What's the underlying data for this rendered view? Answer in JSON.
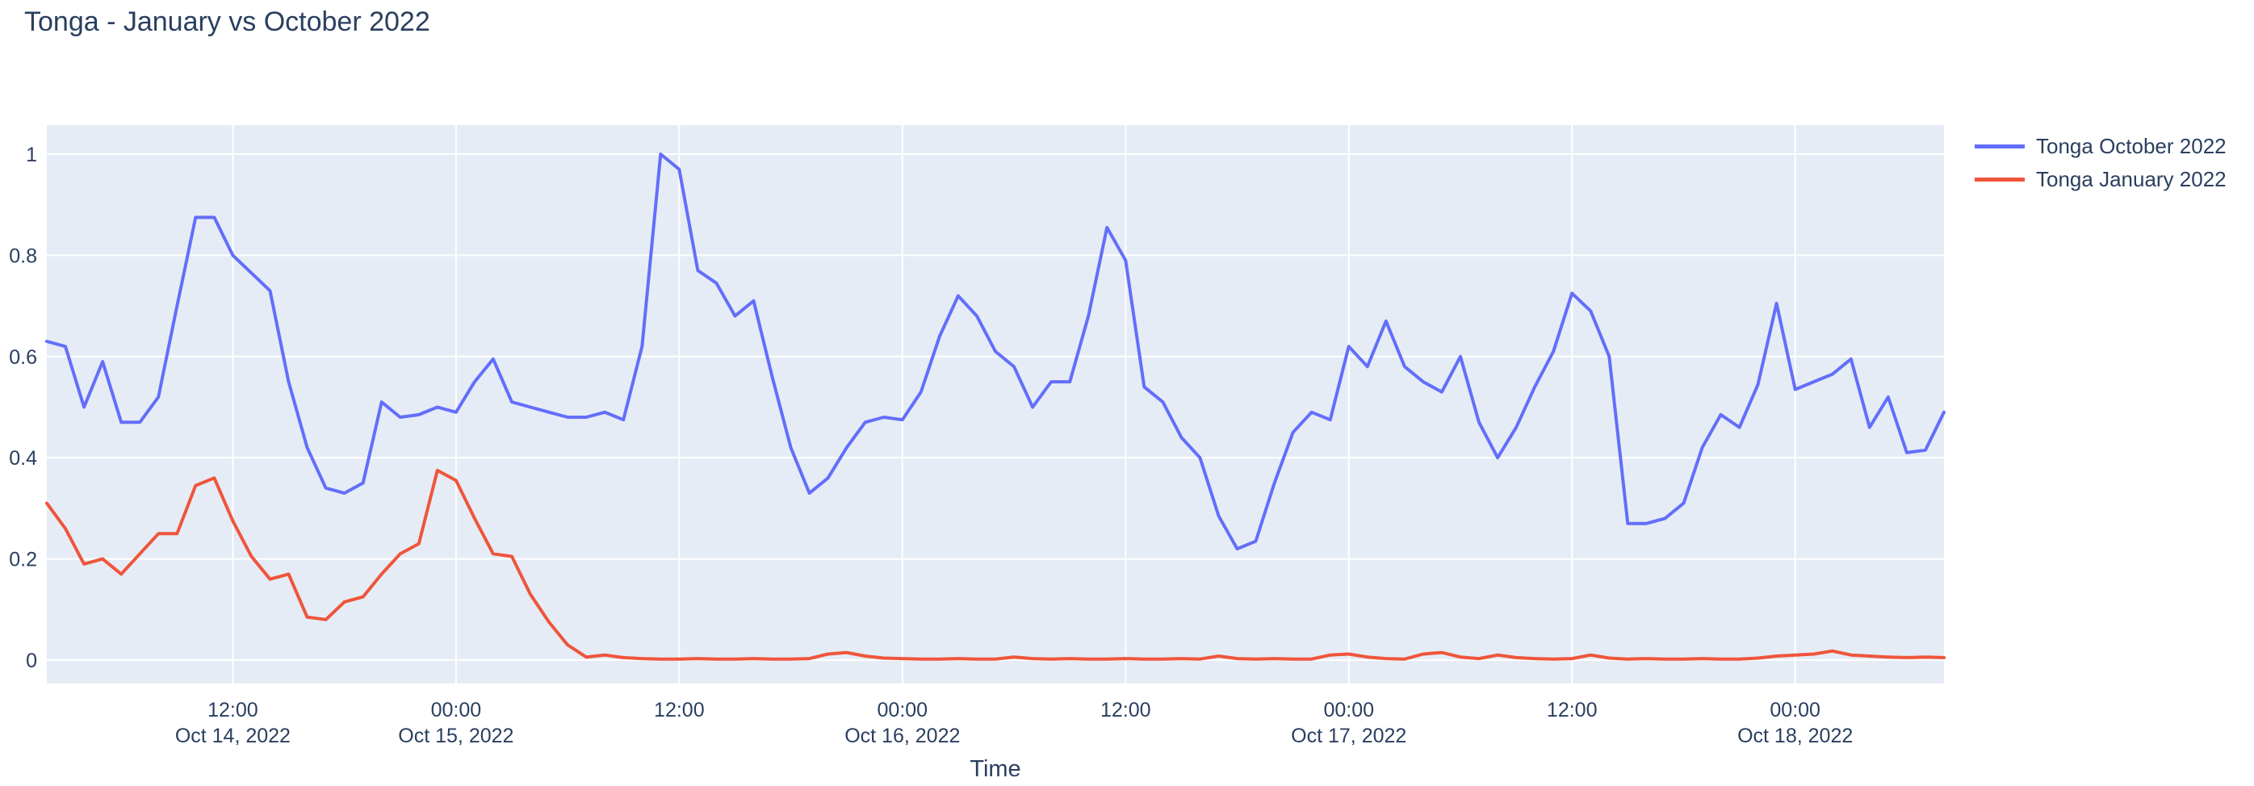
{
  "title": "Tonga - January vs October 2022",
  "colors": {
    "plot_background": "#E5ECF6",
    "grid": "#FFFFFF",
    "text": "#2a3f5f",
    "series_october": "#636EFA",
    "series_january": "#EF553B"
  },
  "legend": {
    "items": [
      {
        "label": "Tonga October 2022",
        "color": "#636EFA"
      },
      {
        "label": "Tonga January 2022",
        "color": "#EF553B"
      }
    ]
  },
  "yaxis": {
    "tick_labels": [
      "0",
      "0.2",
      "0.4",
      "0.6",
      "0.8",
      "1"
    ],
    "tick_values": [
      0,
      0.2,
      0.4,
      0.6,
      0.8,
      1
    ]
  },
  "xaxis": {
    "title": "Time",
    "ticks": [
      {
        "hour_index": 10,
        "time": "12:00",
        "date": "Oct 14, 2022"
      },
      {
        "hour_index": 22,
        "time": "00:00",
        "date": "Oct 15, 2022"
      },
      {
        "hour_index": 34,
        "time": "12:00",
        "date": ""
      },
      {
        "hour_index": 46,
        "time": "00:00",
        "date": "Oct 16, 2022"
      },
      {
        "hour_index": 58,
        "time": "12:00",
        "date": ""
      },
      {
        "hour_index": 70,
        "time": "00:00",
        "date": "Oct 17, 2022"
      },
      {
        "hour_index": 82,
        "time": "12:00",
        "date": ""
      },
      {
        "hour_index": 94,
        "time": "00:00",
        "date": "Oct 18, 2022"
      }
    ]
  },
  "chart_data": {
    "type": "line",
    "title": "Tonga - January vs October 2022",
    "xlabel": "Time",
    "ylabel": "",
    "x_start": "2022-10-14 02:00",
    "x_step_hours": 1,
    "x_end": "2022-10-18 08:00",
    "ylim": [
      -0.046,
      1.057
    ],
    "grid": true,
    "legend_position": "right",
    "series": [
      {
        "name": "Tonga October 2022",
        "color": "#636EFA",
        "values": [
          0.63,
          0.62,
          0.5,
          0.59,
          0.47,
          0.47,
          0.52,
          0.7,
          0.875,
          0.875,
          0.8,
          0.765,
          0.73,
          0.55,
          0.42,
          0.34,
          0.33,
          0.35,
          0.51,
          0.48,
          0.485,
          0.5,
          0.49,
          0.55,
          0.595,
          0.51,
          0.5,
          0.49,
          0.48,
          0.48,
          0.49,
          0.475,
          0.62,
          1.0,
          0.97,
          0.77,
          0.745,
          0.68,
          0.71,
          0.56,
          0.42,
          0.33,
          0.36,
          0.42,
          0.47,
          0.48,
          0.475,
          0.53,
          0.64,
          0.72,
          0.68,
          0.61,
          0.58,
          0.5,
          0.55,
          0.55,
          0.68,
          0.855,
          0.79,
          0.54,
          0.51,
          0.44,
          0.4,
          0.285,
          0.22,
          0.235,
          0.35,
          0.45,
          0.49,
          0.475,
          0.62,
          0.58,
          0.67,
          0.58,
          0.55,
          0.53,
          0.6,
          0.47,
          0.4,
          0.46,
          0.54,
          0.61,
          0.725,
          0.69,
          0.6,
          0.27,
          0.27,
          0.28,
          0.31,
          0.42,
          0.485,
          0.46,
          0.545,
          0.705,
          0.535,
          0.55,
          0.565,
          0.595,
          0.46,
          0.52,
          0.41,
          0.415,
          0.49
        ]
      },
      {
        "name": "Tonga January 2022",
        "color": "#EF553B",
        "values": [
          0.31,
          0.26,
          0.19,
          0.2,
          0.17,
          0.21,
          0.25,
          0.25,
          0.345,
          0.36,
          0.275,
          0.205,
          0.16,
          0.17,
          0.085,
          0.08,
          0.115,
          0.125,
          0.17,
          0.21,
          0.23,
          0.375,
          0.355,
          0.28,
          0.21,
          0.205,
          0.13,
          0.075,
          0.03,
          0.006,
          0.01,
          0.005,
          0.003,
          0.002,
          0.002,
          0.003,
          0.002,
          0.002,
          0.003,
          0.002,
          0.002,
          0.003,
          0.012,
          0.015,
          0.008,
          0.004,
          0.003,
          0.002,
          0.002,
          0.003,
          0.002,
          0.002,
          0.006,
          0.003,
          0.002,
          0.003,
          0.002,
          0.002,
          0.003,
          0.002,
          0.002,
          0.003,
          0.002,
          0.008,
          0.003,
          0.002,
          0.003,
          0.002,
          0.002,
          0.01,
          0.012,
          0.006,
          0.003,
          0.002,
          0.012,
          0.015,
          0.006,
          0.003,
          0.01,
          0.005,
          0.003,
          0.002,
          0.003,
          0.01,
          0.004,
          0.002,
          0.003,
          0.002,
          0.002,
          0.003,
          0.002,
          0.002,
          0.004,
          0.008,
          0.01,
          0.012,
          0.018,
          0.01,
          0.008,
          0.006,
          0.005,
          0.006,
          0.005
        ]
      }
    ]
  }
}
